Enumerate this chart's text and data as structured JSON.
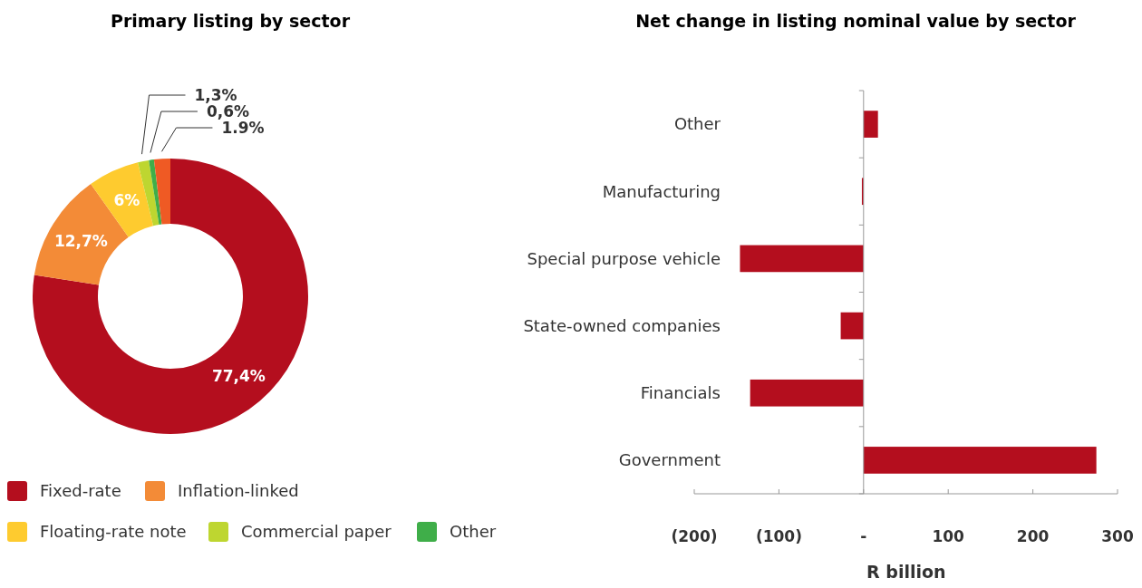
{
  "chart_data": [
    {
      "type": "donut",
      "title": "Primary listing by sector",
      "categories": [
        "Fixed-rate",
        "Inflation-linked",
        "Floating-rate note",
        "Commercial paper",
        "Other",
        null
      ],
      "values": [
        77.4,
        12.7,
        6,
        1.3,
        0.6,
        1.9
      ],
      "colors": [
        "#b40e1e",
        "#f38b37",
        "#fecb2f",
        "#bed630",
        "#3fae49",
        "#ef5a24"
      ],
      "value_labels": [
        "77,4%",
        "12,7%",
        "6%",
        "1,3%",
        "0,6%",
        "1.9%"
      ],
      "legend": "bottom"
    },
    {
      "type": "bar",
      "orientation": "horizontal",
      "title": "Net change in listing nominal value by sector",
      "xlabel": "R billion",
      "categories": [
        "Other",
        "Manufacturing",
        "Special purpose vehicle",
        "State-owned companies",
        "Financials",
        "Government"
      ],
      "values": [
        17,
        -2,
        -146,
        -27,
        -134,
        275
      ],
      "color": "#b40e1e",
      "xlim": [
        -200,
        300
      ],
      "xticks": [
        {
          "value": -200,
          "label": "(200)"
        },
        {
          "value": -100,
          "label": "(100)"
        },
        {
          "value": 0,
          "label": "-"
        },
        100,
        200,
        300
      ]
    }
  ]
}
